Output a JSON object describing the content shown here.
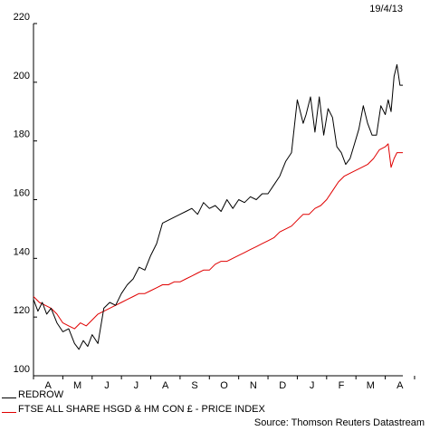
{
  "date_label": "19/4/13",
  "source": "Source: Thomson Reuters Datastream",
  "colors": {
    "series_1": "#000000",
    "series_2": "#e00000"
  },
  "chart_data": {
    "type": "line",
    "title": "",
    "xlabel": "",
    "ylabel": "",
    "ylim": [
      100,
      220
    ],
    "yticks": [
      100,
      120,
      140,
      160,
      180,
      200,
      220
    ],
    "xlim": [
      0,
      12.6
    ],
    "month_labels": [
      "A",
      "M",
      "J",
      "J",
      "A",
      "S",
      "O",
      "N",
      "D",
      "J",
      "F",
      "M",
      "A"
    ],
    "grid": false,
    "legend": "bottom-left",
    "series": [
      {
        "name": "REDROW",
        "x": [
          0,
          0.15,
          0.3,
          0.45,
          0.6,
          0.8,
          1.0,
          1.2,
          1.4,
          1.55,
          1.7,
          1.85,
          2.0,
          2.2,
          2.4,
          2.6,
          2.8,
          3.0,
          3.2,
          3.4,
          3.6,
          3.8,
          4.0,
          4.2,
          4.4,
          4.6,
          4.8,
          5.0,
          5.2,
          5.4,
          5.6,
          5.8,
          6.0,
          6.2,
          6.4,
          6.6,
          6.8,
          7.0,
          7.2,
          7.4,
          7.6,
          7.8,
          8.0,
          8.2,
          8.4,
          8.6,
          8.8,
          9.0,
          9.1,
          9.2,
          9.3,
          9.45,
          9.6,
          9.75,
          9.9,
          10.05,
          10.2,
          10.35,
          10.5,
          10.65,
          10.8,
          10.95,
          11.1,
          11.25,
          11.4,
          11.55,
          11.7,
          11.85,
          12.0,
          12.1,
          12.2,
          12.3,
          12.4,
          12.5,
          12.6
        ],
        "values": [
          126,
          122,
          125,
          121,
          123,
          118,
          115,
          116,
          111,
          109,
          112,
          110,
          114,
          111,
          123,
          125,
          124,
          128,
          131,
          133,
          137,
          136,
          141,
          145,
          152,
          153,
          154,
          155,
          156,
          157,
          155,
          159,
          157,
          158,
          156,
          160,
          157,
          160,
          159,
          161,
          160,
          162,
          162,
          165,
          168,
          173,
          176,
          194,
          190,
          186,
          189,
          195,
          183,
          195,
          182,
          191,
          188,
          178,
          176,
          172,
          174,
          179,
          184,
          192,
          186,
          182,
          182,
          192,
          189,
          194,
          190,
          202,
          206,
          199,
          199
        ]
      },
      {
        "name": "FTSE ALL SHARE HSGD & HM CON £ - PRICE INDEX",
        "x": [
          0,
          0.2,
          0.4,
          0.6,
          0.8,
          1.0,
          1.2,
          1.4,
          1.6,
          1.8,
          2.0,
          2.2,
          2.4,
          2.6,
          2.8,
          3.0,
          3.2,
          3.4,
          3.6,
          3.8,
          4.0,
          4.2,
          4.4,
          4.6,
          4.8,
          5.0,
          5.2,
          5.4,
          5.6,
          5.8,
          6.0,
          6.2,
          6.4,
          6.6,
          6.8,
          7.0,
          7.2,
          7.4,
          7.6,
          7.8,
          8.0,
          8.2,
          8.4,
          8.6,
          8.8,
          9.0,
          9.2,
          9.4,
          9.6,
          9.8,
          10.0,
          10.2,
          10.4,
          10.6,
          10.8,
          11.0,
          11.2,
          11.4,
          11.6,
          11.8,
          12.0,
          12.1,
          12.2,
          12.3,
          12.4,
          12.5,
          12.6
        ],
        "values": [
          127,
          125,
          124,
          123,
          121,
          118,
          117,
          116,
          118,
          117,
          119,
          121,
          122,
          123,
          124,
          125,
          126,
          127,
          128,
          128,
          129,
          130,
          131,
          131,
          132,
          132,
          133,
          134,
          135,
          136,
          136,
          138,
          139,
          139,
          140,
          141,
          142,
          143,
          144,
          145,
          146,
          147,
          149,
          150,
          151,
          153,
          155,
          155,
          157,
          158,
          160,
          163,
          166,
          168,
          169,
          170,
          171,
          172,
          174,
          177,
          178,
          179,
          171,
          174,
          176,
          176,
          176
        ]
      }
    ]
  }
}
